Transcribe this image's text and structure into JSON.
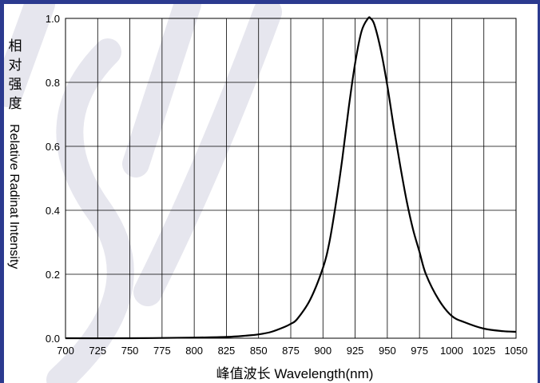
{
  "chart_data": {
    "type": "line",
    "title": "",
    "xlabel": "峰值波长 Wavelength(nm)",
    "ylabel_cn": "相对强度",
    "ylabel_en": "Relative Radinat Intensity",
    "xlim": [
      700,
      1050
    ],
    "ylim": [
      0.0,
      1.0
    ],
    "grid": true,
    "x_ticks": [
      700,
      725,
      750,
      775,
      800,
      825,
      850,
      875,
      900,
      925,
      950,
      975,
      1000,
      1025,
      1050
    ],
    "x_tick_labels": [
      "700",
      "725",
      "750",
      "775",
      "800",
      "825",
      "850",
      "875",
      "900",
      "925",
      "950",
      "975",
      "1000",
      "1025",
      "1050"
    ],
    "y_ticks": [
      0.0,
      0.2,
      0.4,
      0.6,
      0.8,
      1.0
    ],
    "y_tick_labels": [
      "0.0",
      "0.2",
      "0.4",
      "0.6",
      "0.8",
      "1.0"
    ],
    "series": [
      {
        "x": [
          700,
          750,
          800,
          825,
          840,
          850,
          860,
          870,
          875,
          880,
          890,
          900,
          905,
          910,
          915,
          920,
          925,
          930,
          935,
          937,
          940,
          945,
          950,
          955,
          960,
          965,
          970,
          975,
          980,
          990,
          1000,
          1010,
          1025,
          1040,
          1050
        ],
        "y": [
          0.0,
          0.0,
          0.002,
          0.004,
          0.008,
          0.012,
          0.02,
          0.035,
          0.045,
          0.06,
          0.12,
          0.22,
          0.3,
          0.42,
          0.56,
          0.72,
          0.86,
          0.96,
          1.0,
          1.0,
          0.98,
          0.9,
          0.79,
          0.66,
          0.54,
          0.43,
          0.34,
          0.27,
          0.2,
          0.12,
          0.07,
          0.05,
          0.03,
          0.022,
          0.02
        ],
        "color": "#000000"
      }
    ],
    "frame_color": "#2b3a8f",
    "watermark_color": "#e6e6ee"
  }
}
